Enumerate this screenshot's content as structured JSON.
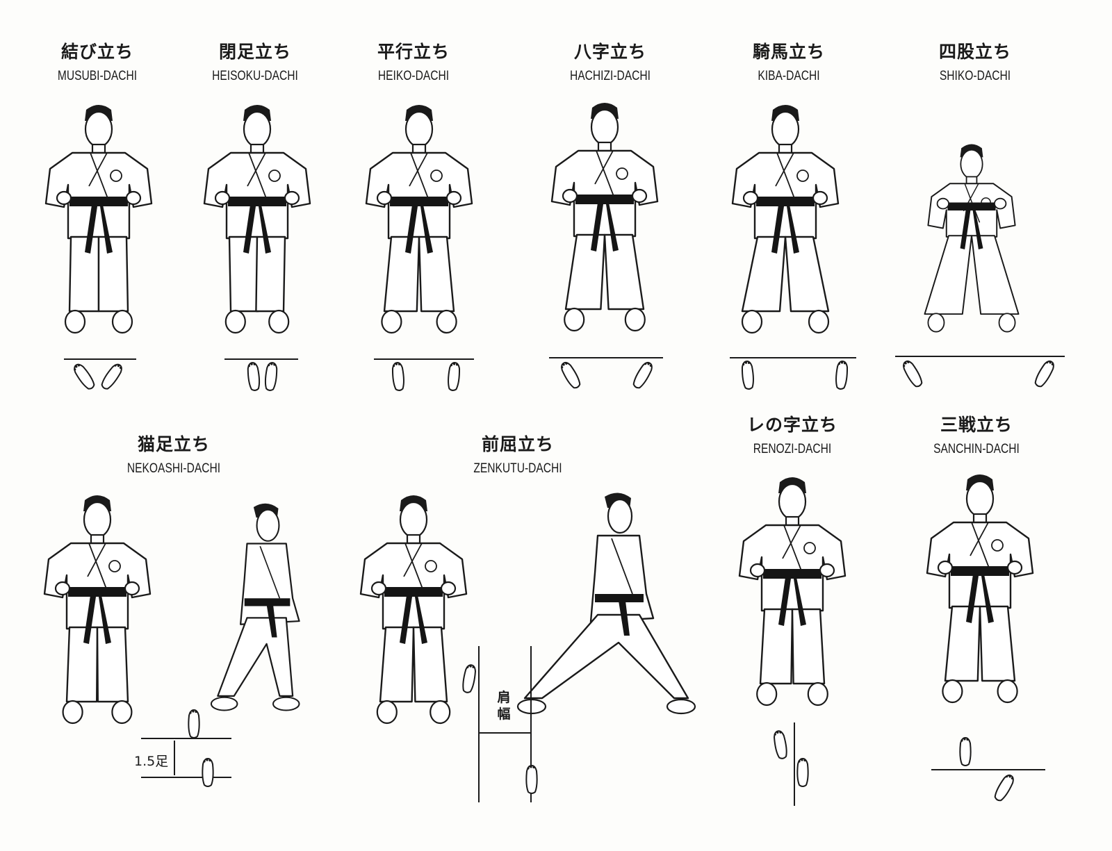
{
  "stances": [
    {
      "jp": "結び立ち",
      "en": "MUSUBI-DACHI"
    },
    {
      "jp": "閉足立ち",
      "en": "HEISOKU-DACHI"
    },
    {
      "jp": "平行立ち",
      "en": "HEIKO-DACHI"
    },
    {
      "jp": "八字立ち",
      "en": "HACHIZI-DACHI"
    },
    {
      "jp": "騎馬立ち",
      "en": "KIBA-DACHI"
    },
    {
      "jp": "四股立ち",
      "en": "SHIKO-DACHI"
    },
    {
      "jp": "猫足立ち",
      "en": "NEKOASHI-DACHI"
    },
    {
      "jp": "前屈立ち",
      "en": "ZENKUTU-DACHI"
    },
    {
      "jp": "レの字立ち",
      "en": "RENOZI-DACHI"
    },
    {
      "jp": "三戦立ち",
      "en": "SANCHIN-DACHI"
    }
  ],
  "annotations": {
    "nekoashi_distance": "1.5足",
    "zenkutsu_width": "肩幅"
  },
  "colors": {
    "ink": "#1a1a1a",
    "paper": "#fdfdfb",
    "belt": "#151515"
  }
}
